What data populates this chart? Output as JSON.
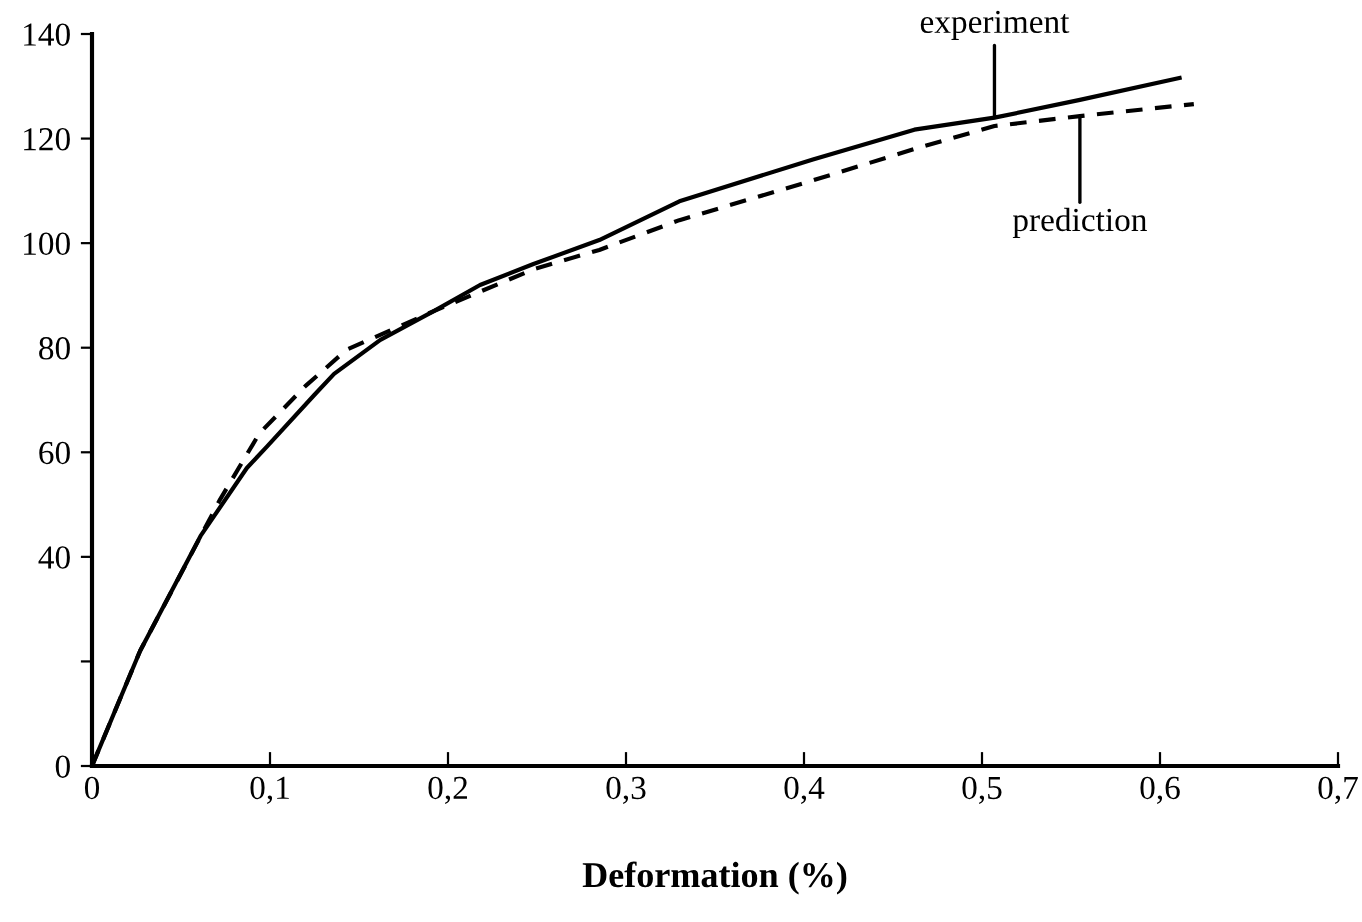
{
  "chart_data": {
    "type": "line",
    "xlabel": "Deformation (%)",
    "series": [
      {
        "name": "experiment",
        "color": "#000000",
        "line_style": "solid",
        "x": [
          0,
          0.027,
          0.061,
          0.087,
          0.098,
          0.125,
          0.136,
          0.162,
          0.192,
          0.218,
          0.248,
          0.285,
          0.33,
          0.405,
          0.462,
          0.507,
          0.555,
          0.611
        ],
        "values": [
          0,
          22,
          44,
          57,
          61,
          71,
          75,
          81.5,
          87,
          92,
          96,
          100.6,
          108,
          116,
          121.7,
          124,
          127.4,
          131.6
        ]
      },
      {
        "name": "prediction",
        "color": "#000000",
        "line_style": "dashed",
        "x": [
          0,
          0.027,
          0.072,
          0.094,
          0.12,
          0.143,
          0.192,
          0.248,
          0.285,
          0.33,
          0.405,
          0.462,
          0.507,
          0.555,
          0.619
        ],
        "values": [
          0,
          22,
          51,
          63.6,
          72.7,
          79.6,
          87,
          95,
          98.7,
          104.4,
          112,
          118,
          122.4,
          124.3,
          126.6
        ]
      }
    ],
    "xlim": [
      0,
      0.7
    ],
    "ylim": [
      0,
      140
    ],
    "xticks": [
      0,
      {
        "value": 0.1,
        "label": "0,1"
      },
      {
        "value": 0.2,
        "label": "0,2"
      },
      {
        "value": 0.3,
        "label": "0,3"
      },
      {
        "value": 0.4,
        "label": "0,4"
      },
      {
        "value": 0.5,
        "label": "0,5"
      },
      {
        "value": 0.6,
        "label": "0,6"
      },
      {
        "value": 0.7,
        "label": "0,7"
      }
    ],
    "yticks": [
      0,
      {
        "value": 20,
        "label": null
      },
      40,
      60,
      80,
      100,
      120,
      140
    ],
    "grid": false,
    "legend": false
  }
}
